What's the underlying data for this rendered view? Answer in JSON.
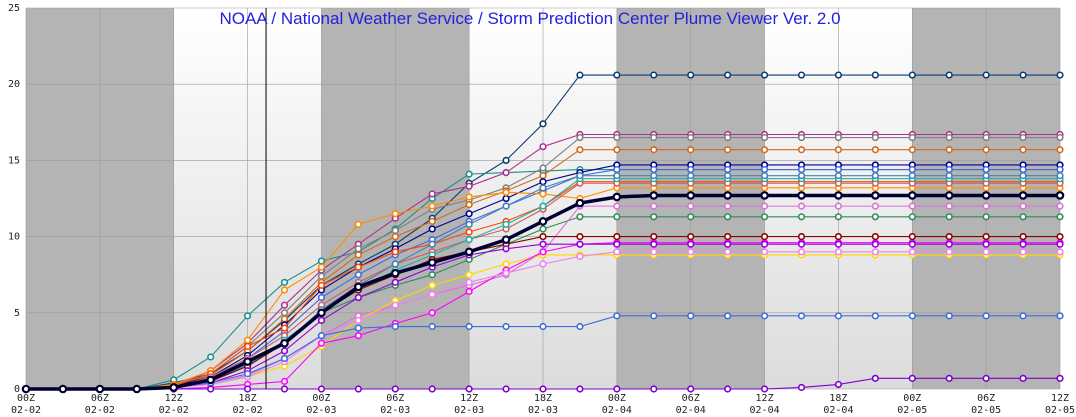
{
  "chart_data": {
    "type": "line",
    "title": "NOAA / National Weather Service / Storm Prediction Center Plume Viewer Ver. 2.0",
    "title_color": "#2222dd",
    "xlabel": "",
    "ylabel": "",
    "ylim": [
      0,
      25
    ],
    "yticks": [
      0,
      5,
      10,
      15,
      20,
      25
    ],
    "x_tick_labels": [
      {
        "time": "00Z",
        "date": "02-02"
      },
      {
        "time": "06Z",
        "date": "02-02"
      },
      {
        "time": "12Z",
        "date": "02-02"
      },
      {
        "time": "18Z",
        "date": "02-02"
      },
      {
        "time": "00Z",
        "date": "02-03"
      },
      {
        "time": "06Z",
        "date": "02-03"
      },
      {
        "time": "12Z",
        "date": "02-03"
      },
      {
        "time": "18Z",
        "date": "02-03"
      },
      {
        "time": "00Z",
        "date": "02-04"
      },
      {
        "time": "06Z",
        "date": "02-04"
      },
      {
        "time": "12Z",
        "date": "02-04"
      },
      {
        "time": "18Z",
        "date": "02-04"
      },
      {
        "time": "00Z",
        "date": "02-05"
      },
      {
        "time": "06Z",
        "date": "02-05"
      },
      {
        "time": "12Z",
        "date": "02-05"
      }
    ],
    "x_hours": [
      0,
      3,
      6,
      9,
      12,
      15,
      18,
      21,
      24,
      27,
      30,
      33,
      36,
      39,
      42,
      45,
      48,
      51,
      54,
      57,
      60,
      63,
      66,
      69,
      72,
      75,
      78,
      81,
      84
    ],
    "night_shading": "gray bands for 00Z-12Z periods",
    "current_time_marker_hour": 19.5,
    "grid": true,
    "legend": "none",
    "series": [
      {
        "color": "#0b3d6e",
        "values": [
          0,
          0,
          0,
          0,
          0.4,
          1.0,
          2.5,
          4.5,
          6.8,
          8.2,
          9.5,
          11.2,
          13.5,
          15.0,
          17.4,
          20.6,
          20.6,
          20.6,
          20.6,
          20.6,
          20.6,
          20.6,
          20.6,
          20.6,
          20.6,
          20.6,
          20.6,
          20.6,
          20.6
        ]
      },
      {
        "color": "#1a8f8f",
        "values": [
          0,
          0,
          0,
          0,
          0.6,
          2.1,
          4.8,
          7.0,
          8.4,
          9.0,
          10.5,
          12.5,
          14.1,
          14.2,
          14.3,
          14.4,
          14.4,
          14.4,
          14.4,
          14.4,
          14.4,
          14.4,
          14.4,
          14.4,
          14.4,
          14.4,
          14.4,
          14.4,
          14.4
        ]
      },
      {
        "color": "#b0308f",
        "values": [
          0,
          0,
          0,
          0,
          0.2,
          1.2,
          3.0,
          5.5,
          7.8,
          9.5,
          11.2,
          12.8,
          13.3,
          14.2,
          15.9,
          16.7,
          16.7,
          16.7,
          16.7,
          16.7,
          16.7,
          16.7,
          16.7,
          16.7,
          16.7,
          16.7,
          16.7,
          16.7,
          16.7
        ]
      },
      {
        "color": "#808080",
        "values": [
          0,
          0,
          0,
          0,
          0.3,
          1.0,
          2.8,
          5.0,
          7.4,
          9.2,
          10.4,
          11.8,
          12.4,
          13.2,
          14.5,
          16.5,
          16.5,
          16.5,
          16.5,
          16.5,
          16.5,
          16.5,
          16.5,
          16.5,
          16.5,
          16.5,
          16.5,
          16.5,
          16.5
        ]
      },
      {
        "color": "#d2691e",
        "values": [
          0,
          0,
          0,
          0,
          0.2,
          0.9,
          2.5,
          4.6,
          7.0,
          8.8,
          10.0,
          11.0,
          12.1,
          13.0,
          14.0,
          15.7,
          15.7,
          15.7,
          15.7,
          15.7,
          15.7,
          15.7,
          15.7,
          15.7,
          15.7,
          15.7,
          15.7,
          15.7,
          15.7
        ]
      },
      {
        "color": "#00008b",
        "values": [
          0,
          0,
          0,
          0,
          0.2,
          0.8,
          2.2,
          4.2,
          6.5,
          8.0,
          9.2,
          10.5,
          11.5,
          12.5,
          13.6,
          14.2,
          14.7,
          14.7,
          14.7,
          14.7,
          14.7,
          14.7,
          14.7,
          14.7,
          14.7,
          14.7,
          14.7,
          14.7,
          14.7
        ]
      },
      {
        "color": "#4169e1",
        "values": [
          0,
          0,
          0,
          0,
          0.1,
          0.7,
          2.0,
          3.8,
          6.0,
          7.5,
          8.8,
          9.8,
          11.0,
          12.0,
          13.0,
          14.0,
          14.4,
          14.4,
          14.4,
          14.4,
          14.4,
          14.4,
          14.4,
          14.4,
          14.4,
          14.4,
          14.4,
          14.4,
          14.4
        ]
      },
      {
        "color": "#ff8c00",
        "values": [
          0,
          0,
          0,
          0,
          0.3,
          1.2,
          3.2,
          6.5,
          8.0,
          10.8,
          11.5,
          12.0,
          12.6,
          12.9,
          12.8,
          12.5,
          13.2,
          13.2,
          13.2,
          13.2,
          13.2,
          13.2,
          13.2,
          13.2,
          13.2,
          13.2,
          13.2,
          13.2,
          13.2
        ]
      },
      {
        "color": "#ff4500",
        "values": [
          0,
          0,
          0,
          0,
          0.2,
          1.0,
          2.8,
          4.0,
          6.8,
          8.0,
          9.0,
          9.5,
          10.3,
          11.0,
          12.0,
          13.6,
          13.6,
          13.6,
          13.6,
          13.6,
          13.6,
          13.6,
          13.6,
          13.6,
          13.6,
          13.6,
          13.6,
          13.6,
          13.6
        ]
      },
      {
        "color": "#2e8b57",
        "values": [
          0,
          0,
          0,
          0,
          0.1,
          0.6,
          1.5,
          3.0,
          5.0,
          6.0,
          6.8,
          7.5,
          8.5,
          9.5,
          10.5,
          11.3,
          11.3,
          11.3,
          11.3,
          11.3,
          11.3,
          11.3,
          11.3,
          11.3,
          11.3,
          11.3,
          11.3,
          11.3,
          11.3
        ]
      },
      {
        "color": "#cd5c5c",
        "values": [
          0,
          0,
          0,
          0,
          0.1,
          0.8,
          2.0,
          3.5,
          5.5,
          7.0,
          8.2,
          9.0,
          9.8,
          10.5,
          11.8,
          13.5,
          13.5,
          13.5,
          13.5,
          13.5,
          13.5,
          13.5,
          13.5,
          13.5,
          13.5,
          13.5,
          13.5,
          13.5,
          13.5
        ]
      },
      {
        "color": "#20b2aa",
        "values": [
          0,
          0,
          0,
          0,
          0.1,
          0.5,
          1.5,
          3.2,
          5.0,
          6.5,
          7.8,
          8.8,
          9.8,
          10.8,
          12.0,
          13.8,
          13.8,
          13.8,
          13.8,
          13.8,
          13.8,
          13.8,
          13.8,
          13.8,
          13.8,
          13.8,
          13.8,
          13.8,
          13.8
        ]
      },
      {
        "color": "#4682b4",
        "values": [
          0,
          0,
          0,
          0,
          0.1,
          0.6,
          1.6,
          3.0,
          5.2,
          6.8,
          8.2,
          9.5,
          10.8,
          12.0,
          13.2,
          14.0,
          14.0,
          14.0,
          14.0,
          14.0,
          14.0,
          14.0,
          14.0,
          14.0,
          14.0,
          14.0,
          14.0,
          14.0,
          14.0
        ]
      },
      {
        "color": "#da70d6",
        "values": [
          0,
          0,
          0,
          0,
          0.1,
          0.3,
          0.9,
          2.0,
          3.5,
          4.8,
          5.5,
          6.2,
          6.8,
          7.5,
          9.0,
          12.0,
          12.0,
          12.0,
          12.0,
          12.0,
          12.0,
          12.0,
          12.0,
          12.0,
          12.0,
          12.0,
          12.0,
          12.0,
          12.0
        ]
      },
      {
        "color": "#ffd700",
        "values": [
          0,
          0,
          0,
          0,
          0.1,
          0.3,
          0.8,
          1.5,
          2.8,
          4.5,
          5.8,
          6.8,
          7.5,
          8.2,
          8.8,
          8.8,
          8.8,
          8.8,
          8.8,
          8.8,
          8.8,
          8.8,
          8.8,
          8.8,
          8.8,
          8.8,
          8.8,
          8.8,
          8.8
        ]
      },
      {
        "color": "#ff00ff",
        "values": [
          0,
          0,
          0,
          0,
          0,
          0.1,
          0.3,
          0.5,
          3.0,
          3.5,
          4.3,
          5.0,
          6.4,
          7.8,
          9.0,
          9.5,
          9.6,
          9.6,
          9.6,
          9.6,
          9.6,
          9.6,
          9.6,
          9.6,
          9.6,
          9.6,
          9.6,
          9.6,
          9.6
        ]
      },
      {
        "color": "#8b0000",
        "values": [
          0,
          0,
          0,
          0,
          0.1,
          0.5,
          1.5,
          3.0,
          5.0,
          6.5,
          7.5,
          8.5,
          9.0,
          9.5,
          10.0,
          10.0,
          10.0,
          10.0,
          10.0,
          10.0,
          10.0,
          10.0,
          10.0,
          10.0,
          10.0,
          10.0,
          10.0,
          10.0,
          10.0
        ]
      },
      {
        "color": "#9400d3",
        "values": [
          0,
          0,
          0,
          0,
          0.1,
          0.4,
          1.2,
          2.5,
          4.5,
          6.0,
          7.0,
          8.0,
          8.8,
          9.2,
          9.5,
          9.5,
          9.5,
          9.5,
          9.5,
          9.5,
          9.5,
          9.5,
          9.5,
          9.5,
          9.5,
          9.5,
          9.5,
          9.5,
          9.5
        ]
      },
      {
        "color": "#ee82ee",
        "values": [
          0,
          0,
          0,
          0,
          0.1,
          0.3,
          0.8,
          1.8,
          3.5,
          4.5,
          5.5,
          6.2,
          7.0,
          7.6,
          8.2,
          8.7,
          9.0,
          9.0,
          9.0,
          9.0,
          9.0,
          9.0,
          9.0,
          9.0,
          9.0,
          9.0,
          9.0,
          9.0,
          9.0
        ]
      },
      {
        "color": "#3d6fd8",
        "values": [
          0,
          0,
          0,
          0,
          0.1,
          0.4,
          1.0,
          2.0,
          3.5,
          4.0,
          4.1,
          4.1,
          4.1,
          4.1,
          4.1,
          4.1,
          4.8,
          4.8,
          4.8,
          4.8,
          4.8,
          4.8,
          4.8,
          4.8,
          4.8,
          4.8,
          4.8,
          4.8,
          4.8
        ]
      },
      {
        "color": "#7f00cc",
        "values": [
          0,
          0,
          0,
          0,
          0,
          0,
          0,
          0,
          0,
          0,
          0,
          0,
          0,
          0,
          0,
          0,
          0,
          0,
          0,
          0,
          0,
          0.1,
          0.3,
          0.7,
          0.7,
          0.7,
          0.7,
          0.7,
          0.7
        ]
      },
      {
        "color": "#000033",
        "mean": true,
        "values": [
          0,
          0,
          0,
          0,
          0.1,
          0.6,
          1.8,
          3.0,
          5.0,
          6.7,
          7.6,
          8.3,
          9.0,
          9.8,
          11.0,
          12.2,
          12.6,
          12.7,
          12.7,
          12.7,
          12.7,
          12.7,
          12.7,
          12.7,
          12.7,
          12.7,
          12.7,
          12.7,
          12.7
        ]
      }
    ]
  }
}
